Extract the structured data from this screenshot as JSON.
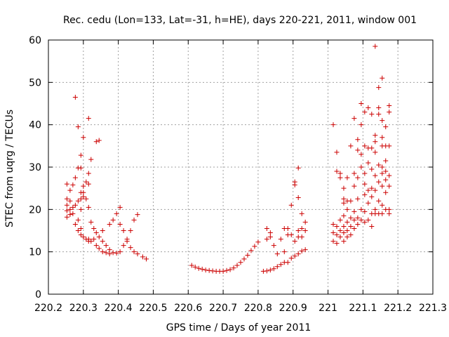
{
  "chart_data": {
    "type": "scatter",
    "title": "Rec. cedu (Lon=133, Lat=-31, h=HE), days 220-221, 2011, window 001",
    "xlabel": "GPS time / Days of year 2011",
    "ylabel": "STEC from uqrg / TECUs",
    "xlim": [
      220.2,
      221.3
    ],
    "ylim": [
      0,
      60
    ],
    "xticks": [
      "220.2",
      "220.3",
      "220.4",
      "220.5",
      "220.6",
      "220.7",
      "220.8",
      "220.9",
      "221",
      "221.1",
      "221.2",
      "221.3"
    ],
    "yticks": [
      "0",
      "10",
      "20",
      "30",
      "40",
      "50",
      "60"
    ],
    "grid": true,
    "marker": "plus",
    "color": "#cc0000",
    "points": [
      [
        220.253,
        26.0
      ],
      [
        220.253,
        22.5
      ],
      [
        220.253,
        21.0
      ],
      [
        220.253,
        19.7
      ],
      [
        220.253,
        18.2
      ],
      [
        220.262,
        24.5
      ],
      [
        220.262,
        22.0
      ],
      [
        220.262,
        20.0
      ],
      [
        220.262,
        18.8
      ],
      [
        220.27,
        25.8
      ],
      [
        220.27,
        20.5
      ],
      [
        220.27,
        19.0
      ],
      [
        220.277,
        46.5
      ],
      [
        220.277,
        27.5
      ],
      [
        220.277,
        21.0
      ],
      [
        220.277,
        16.5
      ],
      [
        220.285,
        39.5
      ],
      [
        220.285,
        29.8
      ],
      [
        220.285,
        22.0
      ],
      [
        220.285,
        17.5
      ],
      [
        220.285,
        15.0
      ],
      [
        220.293,
        32.8
      ],
      [
        220.293,
        29.8
      ],
      [
        220.293,
        24.0
      ],
      [
        220.293,
        22.5
      ],
      [
        220.293,
        20.0
      ],
      [
        220.293,
        15.5
      ],
      [
        220.293,
        14.0
      ],
      [
        220.3,
        37.0
      ],
      [
        220.3,
        25.5
      ],
      [
        220.3,
        24.0
      ],
      [
        220.3,
        23.0
      ],
      [
        220.3,
        13.5
      ],
      [
        220.308,
        26.5
      ],
      [
        220.308,
        22.5
      ],
      [
        220.308,
        13.0
      ],
      [
        220.315,
        41.5
      ],
      [
        220.315,
        28.5
      ],
      [
        220.315,
        26.0
      ],
      [
        220.315,
        20.5
      ],
      [
        220.315,
        13.0
      ],
      [
        220.315,
        12.5
      ],
      [
        220.322,
        31.8
      ],
      [
        220.322,
        17.0
      ],
      [
        220.322,
        12.5
      ],
      [
        220.33,
        15.5
      ],
      [
        220.33,
        13.0
      ],
      [
        220.337,
        36.0
      ],
      [
        220.337,
        14.5
      ],
      [
        220.337,
        11.5
      ],
      [
        220.345,
        36.3
      ],
      [
        220.345,
        13.5
      ],
      [
        220.345,
        10.8
      ],
      [
        220.355,
        15.0
      ],
      [
        220.355,
        12.5
      ],
      [
        220.355,
        10.0
      ],
      [
        220.365,
        11.5
      ],
      [
        220.365,
        9.8
      ],
      [
        220.375,
        16.5
      ],
      [
        220.375,
        10.5
      ],
      [
        220.375,
        9.5
      ],
      [
        220.385,
        17.5
      ],
      [
        220.385,
        9.8
      ],
      [
        220.395,
        19.0
      ],
      [
        220.395,
        9.7
      ],
      [
        220.405,
        20.5
      ],
      [
        220.405,
        16.5
      ],
      [
        220.405,
        10.0
      ],
      [
        220.415,
        15.0
      ],
      [
        220.415,
        11.5
      ],
      [
        220.425,
        13.0
      ],
      [
        220.425,
        12.5
      ],
      [
        220.435,
        15.0
      ],
      [
        220.435,
        11.0
      ],
      [
        220.445,
        17.5
      ],
      [
        220.445,
        10.0
      ],
      [
        220.455,
        18.8
      ],
      [
        220.455,
        9.5
      ],
      [
        220.47,
        8.8
      ],
      [
        220.48,
        8.3
      ],
      [
        220.61,
        6.8
      ],
      [
        220.62,
        6.4
      ],
      [
        220.63,
        6.1
      ],
      [
        220.64,
        5.9
      ],
      [
        220.65,
        5.7
      ],
      [
        220.66,
        5.6
      ],
      [
        220.67,
        5.5
      ],
      [
        220.68,
        5.4
      ],
      [
        220.69,
        5.4
      ],
      [
        220.7,
        5.4
      ],
      [
        220.71,
        5.6
      ],
      [
        220.72,
        5.8
      ],
      [
        220.73,
        6.2
      ],
      [
        220.74,
        6.8
      ],
      [
        220.75,
        7.5
      ],
      [
        220.76,
        8.3
      ],
      [
        220.77,
        9.2
      ],
      [
        220.78,
        10.3
      ],
      [
        220.79,
        11.3
      ],
      [
        220.8,
        12.3
      ],
      [
        220.815,
        5.4
      ],
      [
        220.825,
        15.5
      ],
      [
        220.825,
        13.0
      ],
      [
        220.825,
        5.5
      ],
      [
        220.835,
        14.5
      ],
      [
        220.835,
        13.5
      ],
      [
        220.835,
        5.7
      ],
      [
        220.845,
        11.5
      ],
      [
        220.845,
        6.0
      ],
      [
        220.855,
        9.5
      ],
      [
        220.855,
        6.5
      ],
      [
        220.865,
        13.0
      ],
      [
        220.865,
        7.0
      ],
      [
        220.875,
        15.5
      ],
      [
        220.875,
        10.0
      ],
      [
        220.875,
        7.5
      ],
      [
        220.885,
        15.5
      ],
      [
        220.885,
        14.0
      ],
      [
        220.885,
        7.5
      ],
      [
        220.895,
        21.0
      ],
      [
        220.895,
        14.0
      ],
      [
        220.895,
        8.5
      ],
      [
        220.905,
        26.5
      ],
      [
        220.905,
        25.8
      ],
      [
        220.905,
        12.5
      ],
      [
        220.905,
        9.0
      ],
      [
        220.915,
        29.8
      ],
      [
        220.915,
        22.8
      ],
      [
        220.915,
        15.0
      ],
      [
        220.915,
        13.5
      ],
      [
        220.915,
        9.5
      ],
      [
        220.925,
        19.0
      ],
      [
        220.925,
        15.5
      ],
      [
        220.925,
        13.5
      ],
      [
        220.925,
        10.2
      ],
      [
        220.935,
        17.0
      ],
      [
        220.935,
        15.0
      ],
      [
        220.935,
        10.5
      ],
      [
        221.015,
        40.0
      ],
      [
        221.015,
        16.5
      ],
      [
        221.015,
        14.5
      ],
      [
        221.015,
        12.5
      ],
      [
        221.025,
        33.5
      ],
      [
        221.025,
        29.0
      ],
      [
        221.025,
        16.0
      ],
      [
        221.025,
        14.0
      ],
      [
        221.025,
        12.0
      ],
      [
        221.035,
        28.5
      ],
      [
        221.035,
        27.5
      ],
      [
        221.035,
        17.5
      ],
      [
        221.035,
        15.0
      ],
      [
        221.035,
        13.5
      ],
      [
        221.045,
        25.0
      ],
      [
        221.045,
        22.5
      ],
      [
        221.045,
        21.5
      ],
      [
        221.045,
        18.5
      ],
      [
        221.045,
        16.0
      ],
      [
        221.045,
        14.5
      ],
      [
        221.045,
        12.5
      ],
      [
        221.055,
        27.5
      ],
      [
        221.055,
        22.0
      ],
      [
        221.055,
        20.0
      ],
      [
        221.055,
        17.0
      ],
      [
        221.055,
        15.0
      ],
      [
        221.055,
        13.5
      ],
      [
        221.065,
        35.0
      ],
      [
        221.065,
        22.0
      ],
      [
        221.065,
        18.0
      ],
      [
        221.065,
        16.0
      ],
      [
        221.065,
        14.0
      ],
      [
        221.075,
        41.5
      ],
      [
        221.075,
        28.5
      ],
      [
        221.075,
        25.5
      ],
      [
        221.075,
        19.5
      ],
      [
        221.075,
        17.5
      ],
      [
        221.075,
        15.5
      ],
      [
        221.085,
        36.5
      ],
      [
        221.085,
        34.0
      ],
      [
        221.085,
        27.5
      ],
      [
        221.085,
        22.5
      ],
      [
        221.085,
        18.0
      ],
      [
        221.085,
        16.5
      ],
      [
        221.095,
        45.0
      ],
      [
        221.095,
        40.0
      ],
      [
        221.095,
        33.0
      ],
      [
        221.095,
        30.0
      ],
      [
        221.095,
        20.0
      ],
      [
        221.095,
        17.5
      ],
      [
        221.105,
        43.0
      ],
      [
        221.105,
        35.0
      ],
      [
        221.105,
        28.5
      ],
      [
        221.105,
        26.0
      ],
      [
        221.105,
        23.5
      ],
      [
        221.105,
        19.5
      ],
      [
        221.105,
        17.0
      ],
      [
        221.115,
        44.0
      ],
      [
        221.115,
        34.5
      ],
      [
        221.115,
        31.0
      ],
      [
        221.115,
        24.5
      ],
      [
        221.115,
        21.5
      ],
      [
        221.115,
        17.5
      ],
      [
        221.125,
        42.5
      ],
      [
        221.125,
        34.5
      ],
      [
        221.125,
        29.5
      ],
      [
        221.125,
        25.0
      ],
      [
        221.125,
        23.0
      ],
      [
        221.125,
        19.0
      ],
      [
        221.125,
        16.0
      ],
      [
        221.135,
        58.5
      ],
      [
        221.135,
        37.5
      ],
      [
        221.135,
        36.0
      ],
      [
        221.135,
        33.5
      ],
      [
        221.135,
        28.0
      ],
      [
        221.135,
        24.5
      ],
      [
        221.135,
        20.0
      ],
      [
        221.135,
        19.0
      ],
      [
        221.145,
        48.8
      ],
      [
        221.145,
        44.0
      ],
      [
        221.145,
        42.5
      ],
      [
        221.145,
        30.5
      ],
      [
        221.145,
        26.5
      ],
      [
        221.145,
        22.0
      ],
      [
        221.145,
        19.0
      ],
      [
        221.155,
        51.0
      ],
      [
        221.155,
        41.0
      ],
      [
        221.155,
        37.0
      ],
      [
        221.155,
        35.0
      ],
      [
        221.155,
        30.0
      ],
      [
        221.155,
        28.5
      ],
      [
        221.155,
        25.5
      ],
      [
        221.155,
        21.0
      ],
      [
        221.155,
        19.0
      ],
      [
        221.165,
        39.5
      ],
      [
        221.165,
        35.0
      ],
      [
        221.165,
        31.5
      ],
      [
        221.165,
        29.0
      ],
      [
        221.165,
        27.0
      ],
      [
        221.165,
        24.0
      ],
      [
        221.165,
        20.0
      ],
      [
        221.175,
        44.5
      ],
      [
        221.175,
        43.0
      ],
      [
        221.175,
        35.0
      ],
      [
        221.175,
        28.0
      ],
      [
        221.175,
        25.5
      ],
      [
        221.175,
        20.0
      ],
      [
        221.175,
        19.0
      ]
    ]
  }
}
